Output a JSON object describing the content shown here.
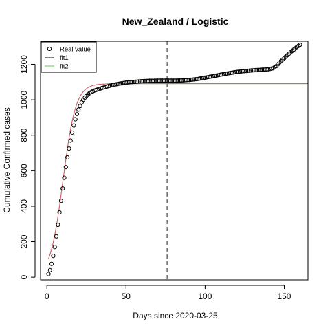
{
  "chart_data": {
    "type": "scatter",
    "title": "New_Zealand / Logistic",
    "xlabel": "Days since 2020-03-25",
    "ylabel": "Cumulative Confirmed cases",
    "xlim": [
      -4,
      165
    ],
    "ylim": [
      -15,
      1330
    ],
    "x_ticks": [
      0,
      50,
      100,
      150
    ],
    "y_ticks": [
      0,
      200,
      400,
      600,
      800,
      1000,
      1200
    ],
    "vline_x": 76,
    "legend": {
      "position": "top-left",
      "entries": [
        {
          "label": "Real value",
          "symbol": "open-circle",
          "color": "#000000"
        },
        {
          "label": "fit1",
          "symbol": "line",
          "color": "#df536b"
        },
        {
          "label": "fit2",
          "symbol": "line",
          "color": "#61d04f"
        }
      ]
    },
    "real_value_curve": [
      [
        1,
        18
      ],
      [
        2,
        40
      ],
      [
        3,
        75
      ],
      [
        4,
        120
      ],
      [
        5,
        170
      ],
      [
        6,
        230
      ],
      [
        7,
        295
      ],
      [
        8,
        365
      ],
      [
        9,
        430
      ],
      [
        10,
        500
      ],
      [
        11,
        560
      ],
      [
        12,
        620
      ],
      [
        13,
        675
      ],
      [
        14,
        725
      ],
      [
        15,
        770
      ],
      [
        16,
        815
      ],
      [
        17,
        855
      ],
      [
        18,
        890
      ],
      [
        19,
        920
      ],
      [
        20,
        945
      ],
      [
        21,
        965
      ],
      [
        22,
        985
      ],
      [
        23,
        1000
      ],
      [
        24,
        1012
      ],
      [
        25,
        1022
      ],
      [
        26,
        1030
      ],
      [
        27,
        1037
      ],
      [
        28,
        1043
      ],
      [
        30,
        1052
      ],
      [
        35,
        1067
      ],
      [
        40,
        1080
      ],
      [
        45,
        1090
      ],
      [
        50,
        1097
      ],
      [
        55,
        1101
      ],
      [
        60,
        1105
      ],
      [
        65,
        1107
      ],
      [
        70,
        1108
      ],
      [
        76,
        1108
      ],
      [
        80,
        1108
      ],
      [
        85,
        1109
      ],
      [
        90,
        1112
      ],
      [
        95,
        1117
      ],
      [
        100,
        1125
      ],
      [
        105,
        1133
      ],
      [
        110,
        1142
      ],
      [
        115,
        1150
      ],
      [
        120,
        1157
      ],
      [
        125,
        1162
      ],
      [
        130,
        1166
      ],
      [
        135,
        1169
      ],
      [
        140,
        1172
      ],
      [
        143,
        1178
      ],
      [
        145,
        1190
      ],
      [
        147,
        1210
      ],
      [
        150,
        1235
      ],
      [
        153,
        1260
      ],
      [
        156,
        1283
      ],
      [
        158,
        1298
      ],
      [
        160,
        1310
      ]
    ],
    "series": [
      {
        "name": "fit1",
        "color": "#df536b",
        "type": "logistic",
        "K": 1091,
        "r": 0.245,
        "x0": 10.2,
        "x_range": [
          1,
          165
        ]
      },
      {
        "name": "fit2",
        "color": "#61d04f",
        "type": "logistic",
        "K": 1091,
        "r": 0.245,
        "x0": 10.2,
        "x_range": [
          1,
          165
        ]
      }
    ]
  }
}
